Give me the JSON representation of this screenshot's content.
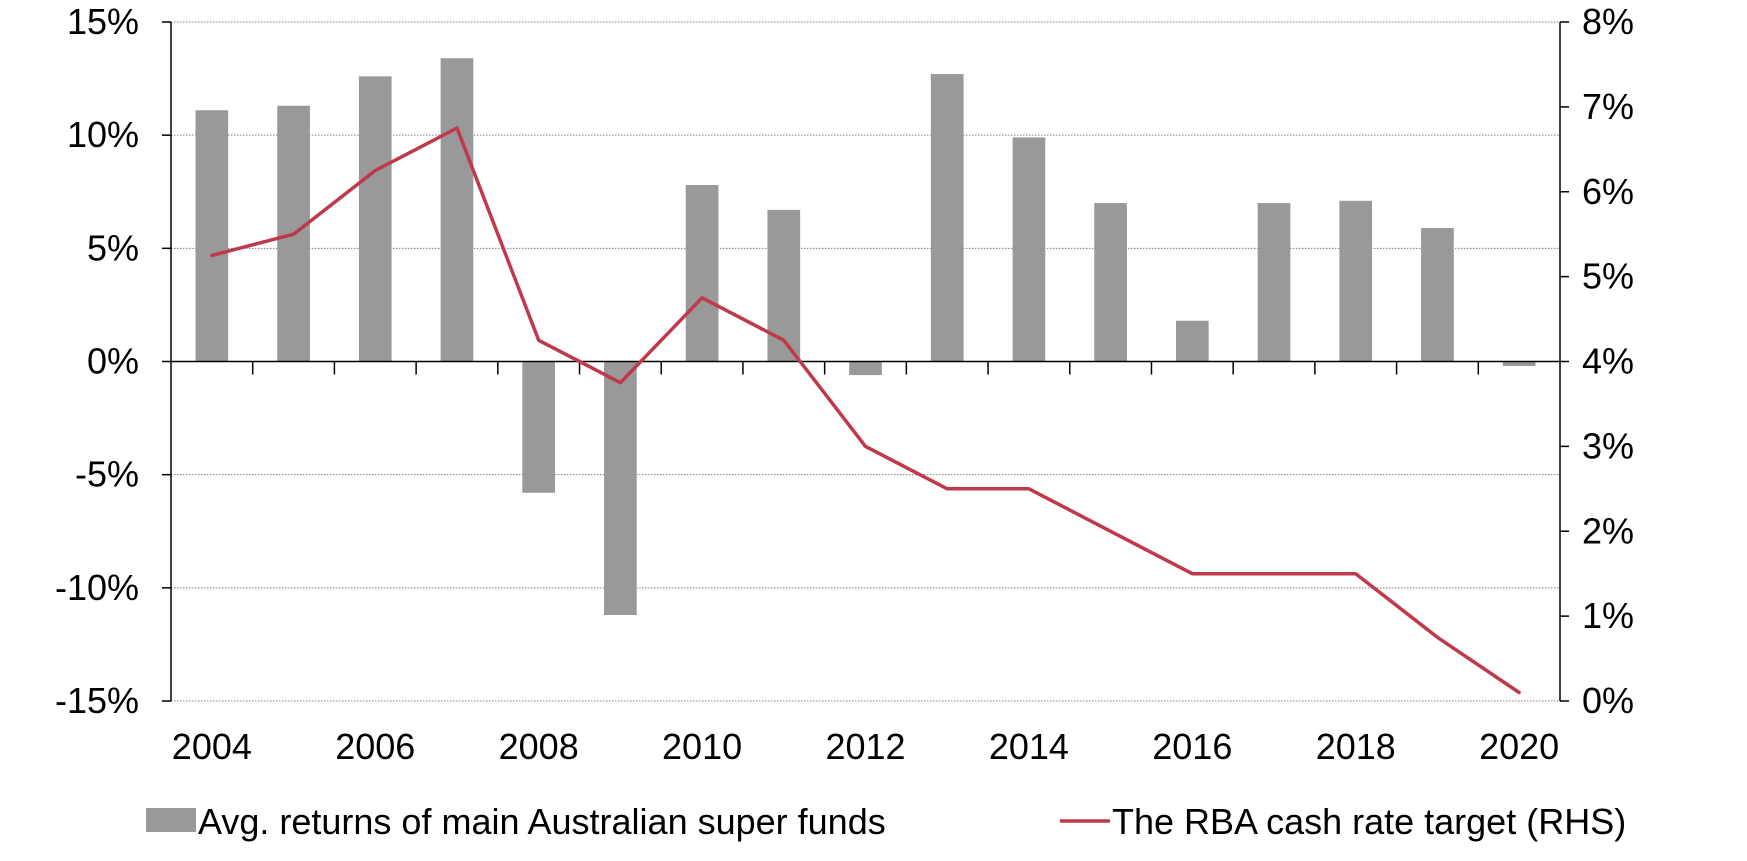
{
  "chart_data": {
    "type": "bar+line",
    "title": "",
    "xlabel": "",
    "categories": [
      "2004",
      "2005",
      "2006",
      "2007",
      "2008",
      "2009",
      "2010",
      "2011",
      "2012",
      "2013",
      "2014",
      "2015",
      "2016",
      "2017",
      "2018",
      "2019",
      "2020"
    ],
    "x_tick_labels": [
      "2004",
      "2006",
      "2008",
      "2010",
      "2012",
      "2014",
      "2016",
      "2018",
      "2020"
    ],
    "left_axis": {
      "ylim": [
        -15,
        15
      ],
      "ticks": [
        15,
        10,
        5,
        0,
        -5,
        -10,
        -15
      ],
      "tick_labels": [
        "15%",
        "10%",
        "5%",
        "0%",
        "-5%",
        "-10%",
        "-15%"
      ]
    },
    "right_axis": {
      "ylim": [
        0,
        8
      ],
      "ticks": [
        8,
        7,
        6,
        5,
        4,
        3,
        2,
        1,
        0
      ],
      "tick_labels": [
        "8%",
        "7%",
        "6%",
        "5%",
        "4%",
        "3%",
        "2%",
        "1%",
        "0%"
      ]
    },
    "series": [
      {
        "name": "Avg. returns of main Australian super funds",
        "type": "bar",
        "axis": "left",
        "color": "#999999",
        "values": [
          11.1,
          11.3,
          12.6,
          13.4,
          -5.8,
          -11.2,
          7.8,
          6.7,
          -0.6,
          12.7,
          9.9,
          7.0,
          1.8,
          7.0,
          7.1,
          5.9,
          -0.2
        ]
      },
      {
        "name": "The RBA cash rate target (RHS)",
        "type": "line",
        "axis": "right",
        "color": "#C0394B",
        "values": [
          5.25,
          5.5,
          6.25,
          6.75,
          4.25,
          3.75,
          4.75,
          4.25,
          3.0,
          2.5,
          2.5,
          2.0,
          1.5,
          1.5,
          1.5,
          0.75,
          0.1
        ]
      }
    ],
    "grid": "horizontal dotted",
    "legend_position": "bottom"
  }
}
